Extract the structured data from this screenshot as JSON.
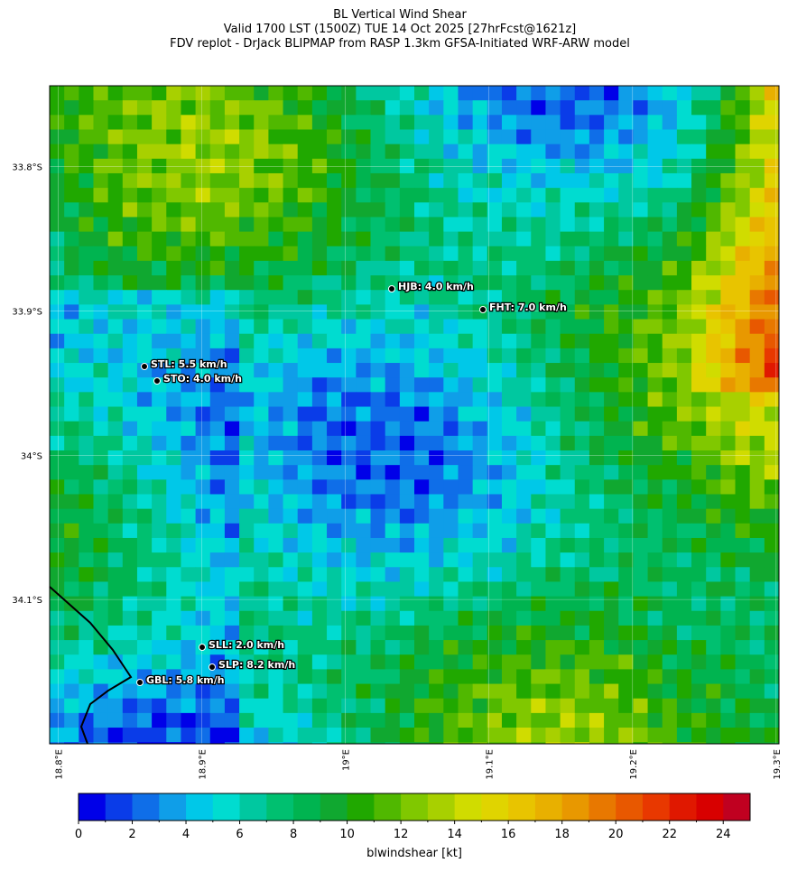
{
  "title_lines": [
    "BL Vertical Wind Shear",
    "Valid 1700 LST (1500Z) TUE 14 Oct 2025 [27hrFcst@1621z]",
    "FDV replot - DrJack BLIPMAP from RASP 1.3km GFSA-Initiated WRF-ARW model"
  ],
  "map": {
    "lonlim": [
      18.794,
      19.302
    ],
    "latlim": [
      33.744,
      34.2
    ],
    "lonticks": [
      {
        "value": 18.8,
        "label": "18.8°E"
      },
      {
        "value": 18.9,
        "label": "18.9°E"
      },
      {
        "value": 19.0,
        "label": "19°E"
      },
      {
        "value": 19.1,
        "label": "19.1°E"
      },
      {
        "value": 19.2,
        "label": "19.2°E"
      },
      {
        "value": 19.3,
        "label": "19.3°E"
      }
    ],
    "latticks": [
      {
        "value": 33.8,
        "label": "33.8°S"
      },
      {
        "value": 33.9,
        "label": "33.9°S"
      },
      {
        "value": 34.0,
        "label": "34°S"
      },
      {
        "value": 34.1,
        "label": "34.1°S"
      }
    ],
    "stations": [
      "HJB: 4.0 km/h",
      "FHT: 7.0 km/h",
      "STL: 5.5 km/h",
      "STO: 4.0 km/h",
      "SLL: 2.0 km/h",
      "SLP: 8.2 km/h",
      "GBL: 5.8 km/h"
    ]
  },
  "colorbar": {
    "label": "blwindshear [kt]",
    "lim": [
      0,
      25
    ],
    "ticks": [
      0,
      2,
      4,
      6,
      8,
      10,
      12,
      14,
      16,
      18,
      20,
      22,
      24
    ],
    "colors": [
      "#0000e8",
      "#0a3ce8",
      "#0f6ee8",
      "#0f9ee8",
      "#00c8e8",
      "#00dcd0",
      "#00c8a0",
      "#00c070",
      "#00b450",
      "#10a830",
      "#20a800",
      "#50b800",
      "#80c800",
      "#a8d000",
      "#d0dc00",
      "#e0d400",
      "#e8c400",
      "#e8b000",
      "#e89800",
      "#e87800",
      "#e85800",
      "#e83800",
      "#e01800",
      "#d80000",
      "#c00020"
    ]
  }
}
